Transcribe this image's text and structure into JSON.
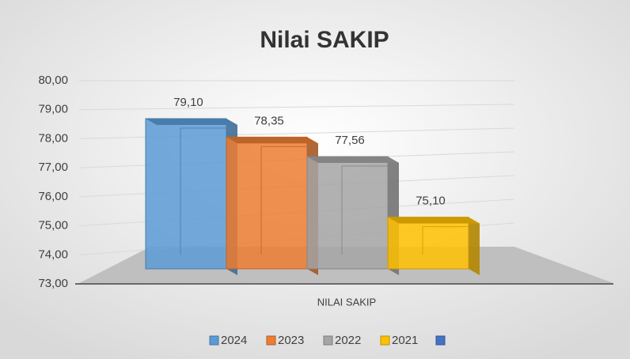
{
  "chart_data": {
    "type": "bar3d",
    "title": "Nilai SAKIP",
    "categories": [
      "NILAI SAKIP"
    ],
    "series": [
      {
        "name": "2024",
        "color": "#5b9bd5",
        "values": [
          79.1
        ],
        "value_labels": [
          "79,10"
        ]
      },
      {
        "name": "2023",
        "color": "#ed7d31",
        "values": [
          78.35
        ],
        "value_labels": [
          "78,35"
        ]
      },
      {
        "name": "2022",
        "color": "#a5a5a5",
        "values": [
          77.56
        ],
        "value_labels": [
          "77,56"
        ]
      },
      {
        "name": "2021",
        "color": "#ffc000",
        "values": [
          75.1
        ],
        "value_labels": [
          "75,10"
        ]
      }
    ],
    "ylim": [
      73,
      80
    ],
    "yticks": [
      {
        "value": 73,
        "label": "73,00"
      },
      {
        "value": 74,
        "label": "74,00"
      },
      {
        "value": 75,
        "label": "75,00"
      },
      {
        "value": 76,
        "label": "76,00"
      },
      {
        "value": 77,
        "label": "77,00"
      },
      {
        "value": 78,
        "label": "78,00"
      },
      {
        "value": 79,
        "label": "79,00"
      },
      {
        "value": 80,
        "label": "80,00"
      }
    ],
    "grid": true,
    "legend": "bottom"
  }
}
